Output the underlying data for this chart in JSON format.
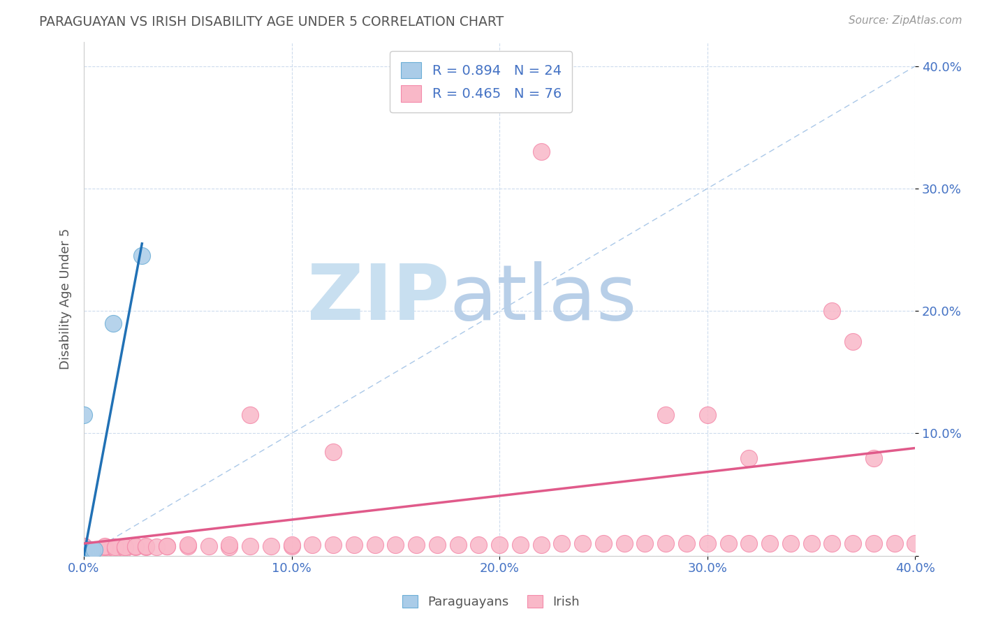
{
  "title": "PARAGUAYAN VS IRISH DISABILITY AGE UNDER 5 CORRELATION CHART",
  "source": "Source: ZipAtlas.com",
  "ylabel": "Disability Age Under 5",
  "xlim": [
    0.0,
    0.4
  ],
  "ylim": [
    0.0,
    0.42
  ],
  "xticks": [
    0.0,
    0.1,
    0.2,
    0.3,
    0.4
  ],
  "yticks": [
    0.0,
    0.1,
    0.2,
    0.3,
    0.4
  ],
  "xticklabels": [
    "0.0%",
    "10.0%",
    "20.0%",
    "30.0%",
    "40.0%"
  ],
  "yticklabels": [
    "",
    "10.0%",
    "20.0%",
    "30.0%",
    "40.0%"
  ],
  "paraguayan_R": 0.894,
  "paraguayan_N": 24,
  "irish_R": 0.465,
  "irish_N": 76,
  "paraguayan_color": "#aacce8",
  "paraguayan_edge_color": "#6baed6",
  "irish_color": "#f9b8c8",
  "irish_edge_color": "#f48aaa",
  "paraguayan_line_color": "#2171b5",
  "irish_line_color": "#e05a8a",
  "ref_line_color": "#aac8e8",
  "watermark_zip": "ZIP",
  "watermark_atlas": "atlas",
  "watermark_color_zip": "#c8dff0",
  "watermark_color_atlas": "#b8cfe8",
  "title_color": "#555555",
  "legend_text_color": "#4472C4",
  "para_line_x0": 0.0,
  "para_line_y0": 0.0,
  "para_line_x1": 0.028,
  "para_line_y1": 0.255,
  "irish_line_x0": 0.0,
  "irish_line_y0": 0.01,
  "irish_line_x1": 0.4,
  "irish_line_y1": 0.088,
  "paraguayan_x": [
    0.0,
    0.0,
    0.001,
    0.001,
    0.001,
    0.001,
    0.001,
    0.002,
    0.002,
    0.002,
    0.002,
    0.002,
    0.002,
    0.002,
    0.003,
    0.003,
    0.003,
    0.003,
    0.004,
    0.004,
    0.005,
    0.0,
    0.014,
    0.028
  ],
  "paraguayan_y": [
    0.001,
    0.002,
    0.001,
    0.002,
    0.003,
    0.003,
    0.004,
    0.002,
    0.002,
    0.003,
    0.003,
    0.004,
    0.004,
    0.005,
    0.003,
    0.004,
    0.004,
    0.005,
    0.004,
    0.005,
    0.005,
    0.115,
    0.19,
    0.245
  ],
  "irish_x": [
    0.0,
    0.0,
    0.0,
    0.0,
    0.0,
    0.0,
    0.0,
    0.0,
    0.0,
    0.0,
    0.01,
    0.01,
    0.01,
    0.01,
    0.01,
    0.015,
    0.015,
    0.015,
    0.02,
    0.02,
    0.02,
    0.025,
    0.025,
    0.03,
    0.03,
    0.035,
    0.04,
    0.04,
    0.05,
    0.05,
    0.06,
    0.07,
    0.07,
    0.08,
    0.09,
    0.1,
    0.1,
    0.11,
    0.12,
    0.13,
    0.14,
    0.15,
    0.16,
    0.17,
    0.18,
    0.19,
    0.2,
    0.21,
    0.22,
    0.23,
    0.24,
    0.25,
    0.26,
    0.27,
    0.28,
    0.29,
    0.3,
    0.31,
    0.32,
    0.33,
    0.34,
    0.35,
    0.36,
    0.37,
    0.38,
    0.39,
    0.4,
    0.22,
    0.36,
    0.37,
    0.28,
    0.08,
    0.12,
    0.32,
    0.3,
    0.38
  ],
  "irish_y": [
    0.005,
    0.005,
    0.006,
    0.006,
    0.006,
    0.007,
    0.007,
    0.007,
    0.008,
    0.008,
    0.005,
    0.006,
    0.007,
    0.007,
    0.008,
    0.006,
    0.006,
    0.007,
    0.006,
    0.007,
    0.007,
    0.007,
    0.008,
    0.007,
    0.008,
    0.007,
    0.008,
    0.008,
    0.008,
    0.009,
    0.008,
    0.007,
    0.009,
    0.008,
    0.008,
    0.008,
    0.009,
    0.009,
    0.009,
    0.009,
    0.009,
    0.009,
    0.009,
    0.009,
    0.009,
    0.009,
    0.009,
    0.009,
    0.009,
    0.01,
    0.01,
    0.01,
    0.01,
    0.01,
    0.01,
    0.01,
    0.01,
    0.01,
    0.01,
    0.01,
    0.01,
    0.01,
    0.01,
    0.01,
    0.01,
    0.01,
    0.01,
    0.33,
    0.2,
    0.175,
    0.115,
    0.115,
    0.085,
    0.08,
    0.115,
    0.08
  ],
  "background_color": "#ffffff"
}
